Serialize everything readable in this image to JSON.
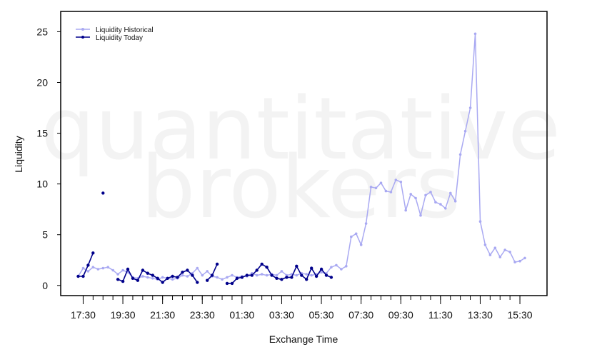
{
  "chart_data": {
    "type": "line",
    "xlabel": "Exchange Time",
    "ylabel": "Liquidity",
    "watermark": [
      "quantitative",
      "brokers"
    ],
    "ylim": [
      -1,
      27
    ],
    "yticks": [
      0,
      5,
      10,
      15,
      20,
      25
    ],
    "x_tick_labels": [
      "17:30",
      "19:30",
      "21:30",
      "23:30",
      "01:30",
      "03:30",
      "05:30",
      "07:30",
      "09:30",
      "11:30",
      "13:30",
      "15:30"
    ],
    "x_tick_indices": [
      1,
      9,
      17,
      25,
      33,
      41,
      49,
      57,
      65,
      73,
      81,
      89
    ],
    "x_minor_step": 2,
    "legend": {
      "position": "top-left"
    },
    "series": [
      {
        "name": "Liquidity Historical",
        "color": "#a9a9f2",
        "values": [
          0.9,
          1.7,
          1.4,
          1.8,
          1.6,
          1.7,
          1.8,
          1.5,
          1.1,
          1.5,
          1.3,
          0.8,
          0.7,
          0.9,
          0.8,
          0.7,
          0.6,
          0.8,
          0.7,
          0.6,
          0.7,
          1.0,
          0.9,
          1.2,
          1.7,
          1.0,
          1.4,
          0.9,
          0.8,
          0.6,
          0.8,
          1.0,
          0.8,
          0.9,
          0.9,
          1.2,
          1.0,
          1.1,
          1.0,
          1.1,
          1.0,
          1.4,
          1.0,
          1.1,
          1.0,
          1.2,
          1.1,
          1.0,
          1.1,
          1.3,
          1.2,
          1.8,
          2.0,
          1.6,
          1.9,
          4.8,
          5.1,
          4.0,
          6.1,
          9.7,
          9.6,
          10.1,
          9.3,
          9.2,
          10.4,
          10.2,
          7.4,
          9.0,
          8.6,
          6.9,
          8.9,
          9.2,
          8.2,
          8.0,
          7.6,
          9.1,
          8.3,
          12.9,
          15.2,
          17.5,
          24.8,
          6.3,
          4.0,
          3.0,
          3.7,
          2.8,
          3.5,
          3.3,
          2.3,
          2.4,
          2.7
        ]
      },
      {
        "name": "Liquidity Today",
        "color": "#00008b",
        "values": [
          0.9,
          0.9,
          2.0,
          3.2,
          null,
          9.1,
          null,
          null,
          0.6,
          0.4,
          1.6,
          0.7,
          0.5,
          1.5,
          1.2,
          1.0,
          0.7,
          0.3,
          0.7,
          0.9,
          0.8,
          1.3,
          1.5,
          1.0,
          0.3,
          null,
          0.5,
          1.0,
          2.1,
          null,
          0.2,
          0.2,
          0.7,
          0.8,
          1.0,
          1.0,
          1.5,
          2.1,
          1.8,
          1.0,
          0.7,
          0.6,
          0.8,
          0.8,
          1.9,
          1.0,
          0.6,
          1.7,
          0.9,
          1.6,
          1.0,
          0.8
        ]
      }
    ]
  }
}
